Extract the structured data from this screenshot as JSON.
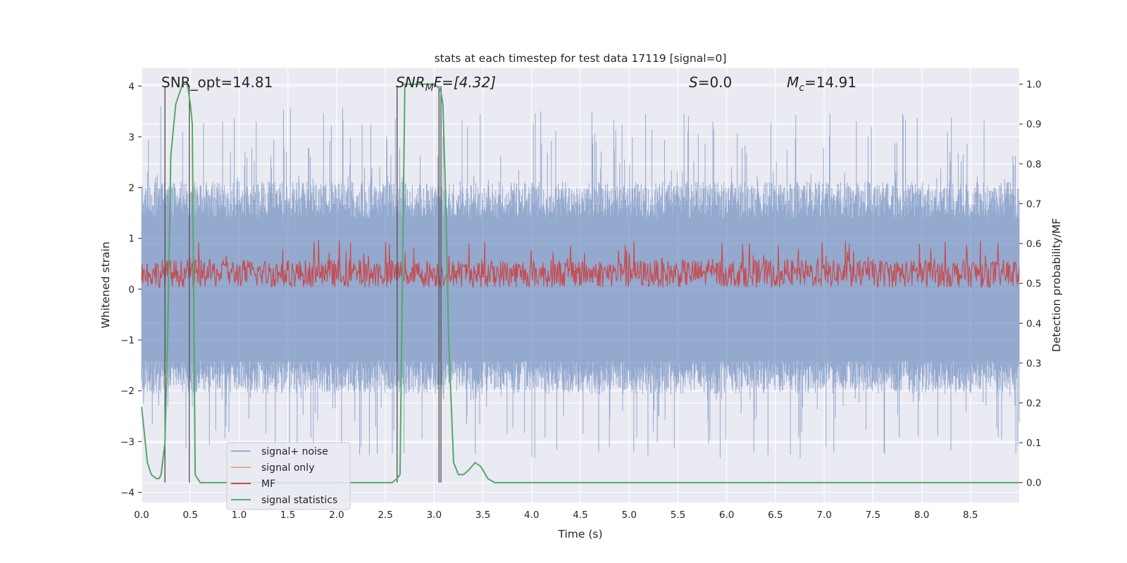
{
  "chart_data": {
    "type": "line",
    "title": "stats at each timestep for test data 17119 [signal=0]",
    "xlabel": "Time (s)",
    "ylabel": "Whitened strain",
    "y2label": "Detection probability/MF",
    "xlim": [
      0.0,
      9.0
    ],
    "ylim": [
      -4.2,
      4.35
    ],
    "y2lim": [
      -0.05,
      1.04
    ],
    "x_ticks": [
      "0.0",
      "0.5",
      "1.0",
      "1.5",
      "2.0",
      "2.5",
      "3.0",
      "3.5",
      "4.0",
      "4.5",
      "5.0",
      "5.5",
      "6.0",
      "6.5",
      "7.0",
      "7.5",
      "8.0",
      "8.5"
    ],
    "y_ticks": [
      "4",
      "3",
      "2",
      "1",
      "0",
      "−1",
      "−2",
      "−3",
      "−4"
    ],
    "y2_ticks": [
      "1.0",
      "0.9",
      "0.8",
      "0.7",
      "0.6",
      "0.5",
      "0.4",
      "0.3",
      "0.2",
      "0.1",
      "0.0"
    ],
    "grid": true,
    "legend_position": "lower-left",
    "annotations": {
      "snr_opt": "SNR_opt=14.81",
      "snr_mf_main": "SNR",
      "snr_mf_sub": "M",
      "snr_mf_rest": "F=[4.32]",
      "s_main": "S",
      "s_rest": "=0.0",
      "mc_main": "M",
      "mc_sub": "c",
      "mc_rest": "=14.91"
    },
    "vertical_markers": [
      0.24,
      0.49,
      2.62,
      3.05,
      3.07
    ],
    "series": [
      {
        "name": "signal+ noise",
        "color": "#4c72b0",
        "alpha": 0.5,
        "envelope": {
          "upper_typical": 2.0,
          "upper_max": 3.6,
          "lower_typical": -2.0,
          "lower_min": -3.35,
          "dense_core": [
            -1.4,
            1.4
          ]
        }
      },
      {
        "name": "signal only",
        "color": "#dd8452",
        "alpha": 0.6,
        "values": []
      },
      {
        "name": "MF",
        "color": "#c44e52",
        "axis": "right",
        "envelope": {
          "lower": 0.49,
          "upper_typical": 0.56,
          "upper_max": 0.61
        }
      },
      {
        "name": "signal statistics",
        "color": "#55a868",
        "axis": "right",
        "x": [
          0.0,
          0.06,
          0.1,
          0.15,
          0.18,
          0.2,
          0.24,
          0.27,
          0.3,
          0.35,
          0.42,
          0.47,
          0.5,
          0.52,
          0.55,
          0.6,
          0.65,
          1.0,
          1.5,
          2.0,
          2.5,
          2.57,
          2.62,
          2.65,
          2.7,
          2.8,
          3.0,
          3.05,
          3.07,
          3.09,
          3.12,
          3.15,
          3.2,
          3.25,
          3.3,
          3.35,
          3.42,
          3.48,
          3.55,
          3.62,
          3.7,
          4.0,
          5.0,
          6.0,
          7.0,
          8.0,
          9.0
        ],
        "y": [
          0.19,
          0.05,
          0.02,
          0.01,
          0.01,
          0.02,
          0.1,
          0.4,
          0.82,
          0.95,
          1.0,
          1.0,
          0.95,
          0.9,
          0.02,
          0.0,
          0.0,
          0.0,
          0.0,
          0.0,
          0.0,
          0.0,
          0.01,
          0.02,
          1.0,
          1.0,
          1.0,
          0.99,
          0.98,
          0.95,
          0.7,
          0.35,
          0.05,
          0.02,
          0.02,
          0.03,
          0.05,
          0.04,
          0.01,
          0.0,
          0.0,
          0.0,
          0.0,
          0.0,
          0.0,
          0.0,
          0.0
        ]
      }
    ]
  }
}
